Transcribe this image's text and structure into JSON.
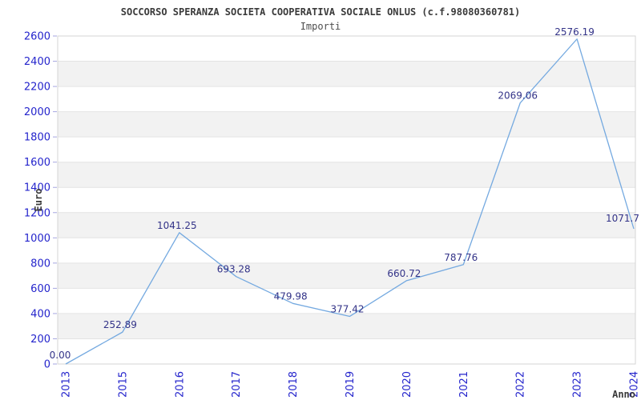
{
  "chart_data": {
    "type": "line",
    "title": "SOCCORSO SPERANZA SOCIETA COOPERATIVA SOCIALE ONLUS (c.f.98080360781)",
    "subtitle": "Importi",
    "xlabel": "Anno",
    "ylabel": "Euro",
    "categories": [
      "2013",
      "2015",
      "2016",
      "2017",
      "2018",
      "2019",
      "2020",
      "2021",
      "2022",
      "2023",
      "2024"
    ],
    "values": [
      0.0,
      252.89,
      1041.25,
      693.28,
      479.98,
      377.42,
      660.72,
      787.76,
      2069.06,
      2576.19,
      1071.7
    ],
    "point_labels": [
      "0.00",
      "252.89",
      "1041.25",
      "693.28",
      "479.98",
      "377.42",
      "660.72",
      "787.76",
      "2069.06",
      "2576.19",
      "1071.7"
    ],
    "ylim": [
      0,
      2600
    ],
    "ytick_step": 200,
    "grid": "horizontal-only",
    "band_fill": "alternating-horizontal",
    "legend": "none",
    "markers": "none",
    "colors": {
      "line": "#74a9e0",
      "tick_label": "#2424cc",
      "point_label": "#333388",
      "band": "#f2f2f2",
      "gridline": "#e4e4e4",
      "border": "#d4d4d4",
      "tick_mark": "#a6a6e0",
      "title": "#3a3a3a",
      "subtitle": "#4d4d4d",
      "axis_title": "#3a3a3a"
    }
  }
}
